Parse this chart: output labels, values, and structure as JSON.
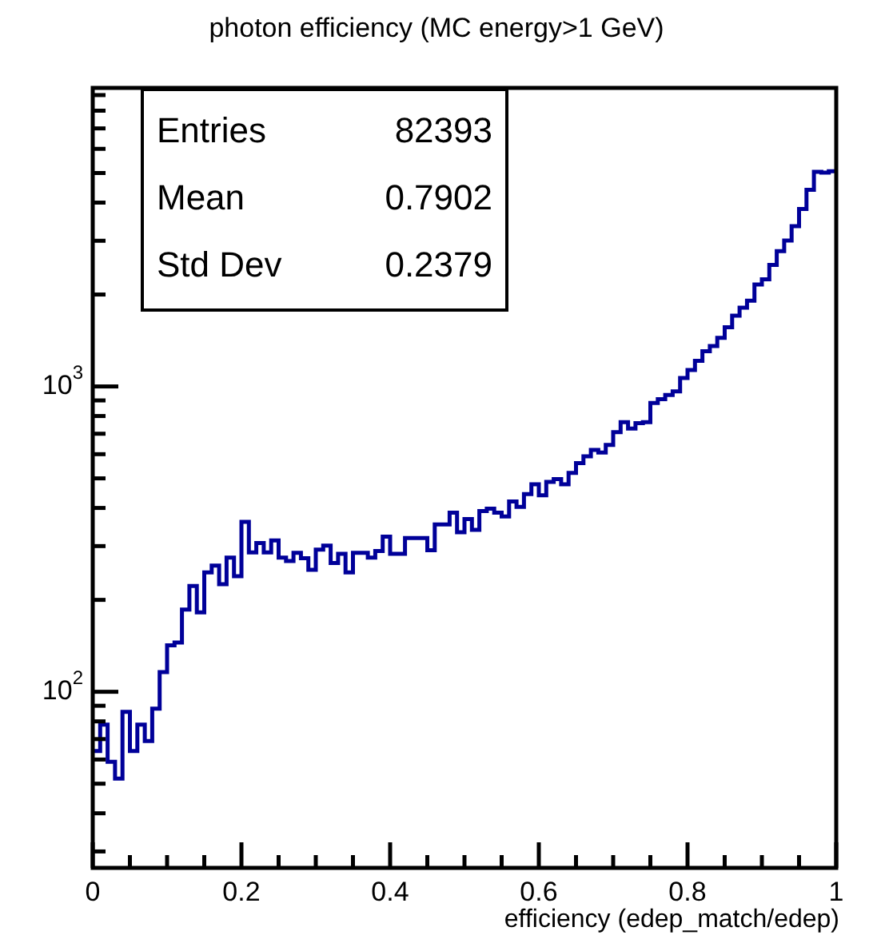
{
  "chart_data": {
    "type": "histogram",
    "title": "photon efficiency (MC energy>1 GeV)",
    "xlabel": "efficiency (edep_match/edep)",
    "annotations": [
      "Entries",
      "82393",
      "Mean",
      "0.7902",
      "Std Dev",
      "0.2379"
    ],
    "color": "#000099",
    "log": "y",
    "bins": [
      0,
      0.01,
      0.02,
      0.03,
      0.04,
      0.05,
      0.06,
      0.07,
      0.08,
      0.09,
      0.1,
      0.11,
      0.12,
      0.13,
      0.14,
      0.15,
      0.16,
      0.17,
      0.18,
      0.19,
      0.2,
      0.21,
      0.22,
      0.23,
      0.24,
      0.25,
      0.26,
      0.27,
      0.28,
      0.29,
      0.3,
      0.31,
      0.32,
      0.33,
      0.34,
      0.35,
      0.36,
      0.37,
      0.38,
      0.39,
      0.4,
      0.41,
      0.42,
      0.43,
      0.44,
      0.45,
      0.46,
      0.47,
      0.48,
      0.49,
      0.5,
      0.51,
      0.52,
      0.53,
      0.54,
      0.55,
      0.56,
      0.57,
      0.58,
      0.59,
      0.6,
      0.61,
      0.62,
      0.63,
      0.64,
      0.65,
      0.66,
      0.67,
      0.68,
      0.69,
      0.7,
      0.71,
      0.72,
      0.73,
      0.74,
      0.75,
      0.76,
      0.77,
      0.78,
      0.79,
      0.8,
      0.81,
      0.82,
      0.83,
      0.84,
      0.85,
      0.86,
      0.87,
      0.88,
      0.89,
      0.9,
      0.91,
      0.92,
      0.93,
      0.94,
      0.95,
      0.96,
      0.97,
      0.98,
      0.99,
      1
    ],
    "values": [
      64,
      78,
      59,
      52,
      86,
      64,
      78,
      69,
      88,
      116,
      142,
      145,
      186,
      222,
      182,
      246,
      259,
      225,
      275,
      239,
      360,
      286,
      307,
      286,
      313,
      275,
      268,
      285,
      274,
      251,
      292,
      301,
      264,
      283,
      246,
      285,
      285,
      275,
      289,
      322,
      283,
      283,
      319,
      319,
      319,
      291,
      353,
      353,
      386,
      333,
      368,
      339,
      391,
      398,
      386,
      375,
      420,
      403,
      444,
      478,
      440,
      487,
      497,
      478,
      521,
      561,
      590,
      620,
      608,
      643,
      708,
      764,
      728,
      758,
      764,
      883,
      908,
      938,
      964,
      1066,
      1132,
      1213,
      1304,
      1357,
      1442,
      1563,
      1706,
      1811,
      1910,
      2157,
      2243,
      2500,
      2773,
      3005,
      3350,
      3812,
      4404,
      5047,
      5013,
      5070
    ],
    "xlim": [
      0,
      1
    ],
    "xticks": [
      0,
      {
        "value": 0.05,
        "label": null
      },
      {
        "value": 0.1,
        "label": null
      },
      {
        "value": 0.15,
        "label": null
      },
      0.2,
      {
        "value": 0.25,
        "label": null
      },
      {
        "value": 0.3,
        "label": null
      },
      {
        "value": 0.35,
        "label": null
      },
      0.4,
      {
        "value": 0.45,
        "label": null
      },
      {
        "value": 0.5,
        "label": null
      },
      {
        "value": 0.55,
        "label": null
      },
      0.6,
      {
        "value": 0.65,
        "label": null
      },
      {
        "value": 0.7,
        "label": null
      },
      {
        "value": 0.75,
        "label": null
      },
      0.8,
      {
        "value": 0.85,
        "label": null
      },
      {
        "value": 0.9,
        "label": null
      },
      {
        "value": 0.95,
        "label": null
      },
      1
    ],
    "ylim": [
      26.5,
      9500
    ],
    "yticks": [
      {
        "value": 30,
        "label": null
      },
      {
        "value": 40,
        "label": null
      },
      {
        "value": 50,
        "label": null
      },
      {
        "value": 60,
        "label": null
      },
      {
        "value": 70,
        "label": null
      },
      {
        "value": 80,
        "label": null
      },
      {
        "value": 90,
        "label": null
      },
      {
        "value": 100,
        "label": "10$^{2}$"
      },
      {
        "value": 200,
        "label": null
      },
      {
        "value": 300,
        "label": null
      },
      {
        "value": 400,
        "label": null
      },
      {
        "value": 500,
        "label": null
      },
      {
        "value": 600,
        "label": null
      },
      {
        "value": 700,
        "label": null
      },
      {
        "value": 800,
        "label": null
      },
      {
        "value": 900,
        "label": null
      },
      {
        "value": 1000,
        "label": "10$^{3}$"
      },
      {
        "value": 2000,
        "label": null
      },
      {
        "value": 3000,
        "label": null
      },
      {
        "value": 4000,
        "label": null
      },
      {
        "value": 5000,
        "label": null
      },
      {
        "value": 6000,
        "label": null
      },
      {
        "value": 7000,
        "label": null
      },
      {
        "value": 8000,
        "label": null
      },
      {
        "value": 9000,
        "label": null
      }
    ]
  }
}
